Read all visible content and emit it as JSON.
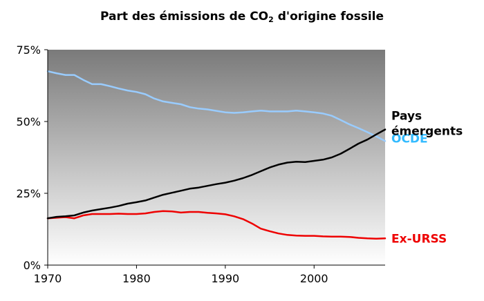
{
  "chart_data": {
    "type": "line",
    "title": {
      "pre": "Part des émissions de CO",
      "sub": "2",
      "post": " d'origine fossile"
    },
    "xlabel": "",
    "ylabel": "",
    "xlim": [
      1970,
      2008
    ],
    "ylim": [
      0,
      75
    ],
    "x_ticks": [
      1970,
      1980,
      1990,
      2000
    ],
    "y_ticks": [
      {
        "value": 0,
        "label": "0%"
      },
      {
        "value": 25,
        "label": "25%"
      },
      {
        "value": 50,
        "label": "50%"
      },
      {
        "value": 75,
        "label": "75%"
      }
    ],
    "grid": false,
    "background": "vertical gradient, dark gray at top to white at bottom",
    "legend": "direct labels at right end of lines",
    "series": [
      {
        "name": "OCDE",
        "color": "#99ccff",
        "points": [
          [
            1970,
            67.5
          ],
          [
            1971,
            66.8
          ],
          [
            1972,
            66.2
          ],
          [
            1973,
            66.2
          ],
          [
            1974,
            64.5
          ],
          [
            1975,
            63.0
          ],
          [
            1976,
            63.0
          ],
          [
            1977,
            62.3
          ],
          [
            1978,
            61.5
          ],
          [
            1979,
            60.8
          ],
          [
            1980,
            60.3
          ],
          [
            1981,
            59.5
          ],
          [
            1982,
            58.0
          ],
          [
            1983,
            57.0
          ],
          [
            1984,
            56.5
          ],
          [
            1985,
            56.0
          ],
          [
            1986,
            55.0
          ],
          [
            1987,
            54.5
          ],
          [
            1988,
            54.2
          ],
          [
            1989,
            53.7
          ],
          [
            1990,
            53.2
          ],
          [
            1991,
            53.0
          ],
          [
            1992,
            53.2
          ],
          [
            1993,
            53.5
          ],
          [
            1994,
            53.8
          ],
          [
            1995,
            53.5
          ],
          [
            1996,
            53.5
          ],
          [
            1997,
            53.5
          ],
          [
            1998,
            53.8
          ],
          [
            1999,
            53.5
          ],
          [
            2000,
            53.2
          ],
          [
            2001,
            52.8
          ],
          [
            2002,
            52.0
          ],
          [
            2003,
            50.5
          ],
          [
            2004,
            49.0
          ],
          [
            2005,
            47.7
          ],
          [
            2006,
            46.3
          ],
          [
            2007,
            44.8
          ],
          [
            2008,
            43.2
          ]
        ]
      },
      {
        "name": "Pays émergents",
        "label_lines": [
          "Pays",
          "émergents"
        ],
        "color": "#000000",
        "points": [
          [
            1970,
            16.3
          ],
          [
            1971,
            16.8
          ],
          [
            1972,
            17.0
          ],
          [
            1973,
            17.3
          ],
          [
            1974,
            18.3
          ],
          [
            1975,
            19.0
          ],
          [
            1976,
            19.5
          ],
          [
            1977,
            20.0
          ],
          [
            1978,
            20.6
          ],
          [
            1979,
            21.4
          ],
          [
            1980,
            21.9
          ],
          [
            1981,
            22.5
          ],
          [
            1982,
            23.5
          ],
          [
            1983,
            24.5
          ],
          [
            1984,
            25.2
          ],
          [
            1985,
            25.9
          ],
          [
            1986,
            26.6
          ],
          [
            1987,
            27.0
          ],
          [
            1988,
            27.6
          ],
          [
            1989,
            28.2
          ],
          [
            1990,
            28.7
          ],
          [
            1991,
            29.4
          ],
          [
            1992,
            30.3
          ],
          [
            1993,
            31.4
          ],
          [
            1994,
            32.7
          ],
          [
            1995,
            34.0
          ],
          [
            1996,
            35.0
          ],
          [
            1997,
            35.7
          ],
          [
            1998,
            36.0
          ],
          [
            1999,
            35.9
          ],
          [
            2000,
            36.3
          ],
          [
            2001,
            36.7
          ],
          [
            2002,
            37.5
          ],
          [
            2003,
            38.8
          ],
          [
            2004,
            40.5
          ],
          [
            2005,
            42.3
          ],
          [
            2006,
            43.7
          ],
          [
            2007,
            45.5
          ],
          [
            2008,
            47.2
          ]
        ]
      },
      {
        "name": "Ex-URSS",
        "color": "#ee0000",
        "points": [
          [
            1970,
            16.3
          ],
          [
            1971,
            16.5
          ],
          [
            1972,
            16.7
          ],
          [
            1973,
            16.3
          ],
          [
            1974,
            17.3
          ],
          [
            1975,
            17.8
          ],
          [
            1976,
            17.8
          ],
          [
            1977,
            17.8
          ],
          [
            1978,
            17.9
          ],
          [
            1979,
            17.8
          ],
          [
            1980,
            17.8
          ],
          [
            1981,
            18.0
          ],
          [
            1982,
            18.5
          ],
          [
            1983,
            18.8
          ],
          [
            1984,
            18.7
          ],
          [
            1985,
            18.3
          ],
          [
            1986,
            18.5
          ],
          [
            1987,
            18.5
          ],
          [
            1988,
            18.2
          ],
          [
            1989,
            18.0
          ],
          [
            1990,
            17.7
          ],
          [
            1991,
            17.0
          ],
          [
            1992,
            16.0
          ],
          [
            1993,
            14.5
          ],
          [
            1994,
            12.7
          ],
          [
            1995,
            11.8
          ],
          [
            1996,
            11.0
          ],
          [
            1997,
            10.5
          ],
          [
            1998,
            10.3
          ],
          [
            1999,
            10.2
          ],
          [
            2000,
            10.2
          ],
          [
            2001,
            10.0
          ],
          [
            2002,
            9.9
          ],
          [
            2003,
            9.9
          ],
          [
            2004,
            9.8
          ],
          [
            2005,
            9.5
          ],
          [
            2006,
            9.3
          ],
          [
            2007,
            9.2
          ],
          [
            2008,
            9.3
          ]
        ]
      }
    ]
  }
}
